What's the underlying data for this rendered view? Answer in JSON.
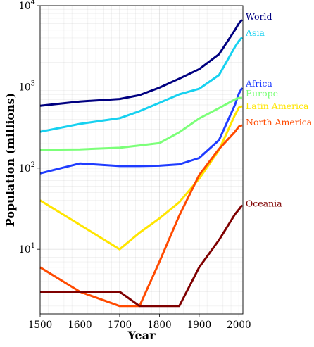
{
  "chart_data": {
    "type": "line",
    "title": "",
    "xlabel": "Year",
    "ylabel": "Population (millions)",
    "xlim": [
      1500,
      2010
    ],
    "ylim": [
      1.6,
      10000
    ],
    "yscale": "log",
    "grid": "on (major and minor)",
    "legend": "none (series names labeled at right end of each line)",
    "x_ticks": [
      1500,
      1600,
      1700,
      1800,
      1900,
      2000
    ],
    "x_tick_labels": [
      "1500",
      "1600",
      "1700",
      "1800",
      "1900",
      "2000"
    ],
    "y_ticks": [
      10,
      100,
      1000,
      10000
    ],
    "y_tick_labels": [
      "10^1",
      "10^2",
      "10^3",
      "10^4"
    ],
    "x": [
      1500,
      1600,
      1700,
      1750,
      1800,
      1850,
      1900,
      1950,
      1990,
      2000,
      2008
    ],
    "series": [
      {
        "name": "World",
        "color": "#000080",
        "values": [
          585,
          660,
          710,
          791,
          978,
          1262,
          1650,
          2519,
          5000,
          6070,
          6707
        ]
      },
      {
        "name": "Asia",
        "color": "#17d1f0",
        "values": [
          280,
          350,
          411,
          502,
          635,
          809,
          947,
          1398,
          3100,
          3680,
          4054
        ]
      },
      {
        "name": "Africa",
        "color": "#1f3cff",
        "values": [
          86,
          114,
          106,
          106,
          107,
          111,
          133,
          221,
          600,
          831,
          973
        ]
      },
      {
        "name": "Europe",
        "color": "#7cff79",
        "values": [
          168,
          170,
          178,
          190,
          203,
          276,
          408,
          547,
          700,
          729,
          732
        ]
      },
      {
        "name": "Latin America",
        "color": "#ffe500",
        "values": [
          40,
          20,
          10,
          16,
          24,
          38,
          74,
          167,
          450,
          557,
          577
        ]
      },
      {
        "name": "North America",
        "color": "#ff4a00",
        "values": [
          6,
          3,
          2,
          2,
          7,
          26,
          82,
          172,
          280,
          326,
          337
        ]
      },
      {
        "name": "Oceania",
        "color": "#7f0000",
        "values": [
          3,
          3,
          3,
          2,
          2,
          2,
          6,
          13,
          27,
          31,
          35
        ]
      }
    ],
    "end_labels": [
      {
        "name": "World",
        "color": "#000080"
      },
      {
        "name": "Asia",
        "color": "#17d1f0"
      },
      {
        "name": "Africa",
        "color": "#1f3cff"
      },
      {
        "name": "Europe",
        "color": "#7cff79"
      },
      {
        "name": "Latin America",
        "color": "#ffe500"
      },
      {
        "name": "North America",
        "color": "#ff4a00"
      },
      {
        "name": "Oceania",
        "color": "#7f0000"
      }
    ]
  }
}
